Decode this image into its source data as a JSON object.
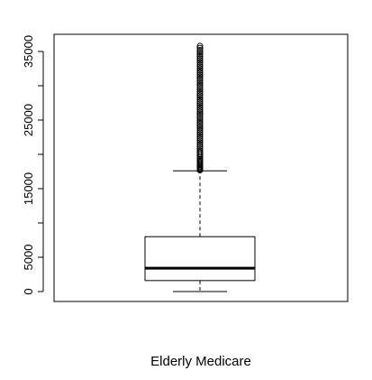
{
  "chart_data": {
    "type": "box",
    "xlabel": "Elderly Medicare",
    "ylabel": "",
    "title": "",
    "ylim": [
      0,
      36000
    ],
    "yticks": [
      0,
      5000,
      10000,
      15000,
      20000,
      25000,
      30000,
      35000
    ],
    "yticklabels": [
      "0",
      "5000",
      "",
      "15000",
      "",
      "25000",
      "",
      "35000"
    ],
    "box": {
      "min": 0,
      "q1": 1600,
      "median": 3400,
      "q3": 8000,
      "upper_whisker": 17600,
      "outliers_range": [
        17600,
        35800
      ]
    },
    "outliers": [
      17700,
      17850,
      18000,
      18150,
      18300,
      18500,
      18700,
      18900,
      19100,
      19300,
      19500,
      19750,
      20000,
      20250,
      20500,
      20800,
      21100,
      21400,
      21700,
      22000,
      22300,
      22600,
      22900,
      23200,
      23500,
      23800,
      24100,
      24400,
      24700,
      25000,
      25300,
      25600,
      25900,
      26200,
      26500,
      26800,
      27100,
      27400,
      27700,
      28000,
      28300,
      28600,
      28900,
      29200,
      29500,
      29800,
      30100,
      30400,
      30700,
      31000,
      31300,
      31600,
      31900,
      32200,
      32500,
      32800,
      33100,
      33400,
      33700,
      34000,
      34300,
      34600,
      34900,
      35200,
      35500,
      35800
    ]
  }
}
